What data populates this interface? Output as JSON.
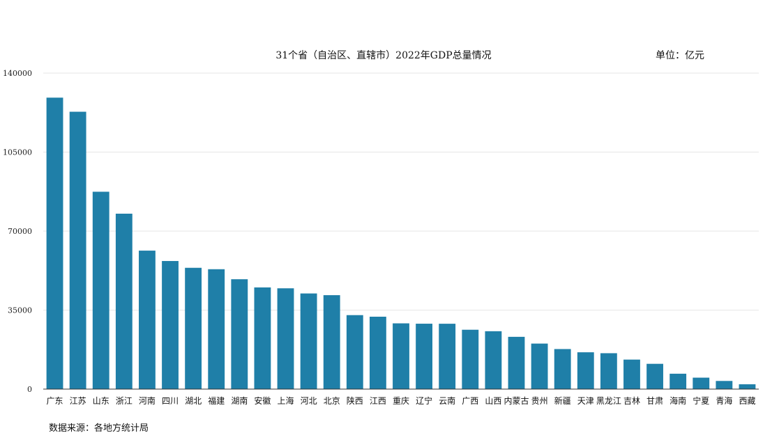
{
  "chart_data": {
    "type": "bar",
    "title": "31个省（自治区、直辖市）2022年GDP总量情况",
    "unit_label": "单位：亿元",
    "source_note": "数据来源：各地方统计局",
    "bar_color": "#1f7fa8",
    "ylim": [
      0,
      140000
    ],
    "yticks": [
      "0",
      "35000",
      "70000",
      "105000",
      "140000"
    ],
    "grid": true,
    "categories": [
      "广东",
      "江苏",
      "山东",
      "浙江",
      "河南",
      "四川",
      "湖北",
      "福建",
      "湖南",
      "安徽",
      "上海",
      "河北",
      "北京",
      "陕西",
      "江西",
      "重庆",
      "辽宁",
      "云南",
      "广西",
      "山西",
      "内蒙古",
      "贵州",
      "新疆",
      "天津",
      "黑龙江",
      "吉林",
      "甘肃",
      "海南",
      "宁夏",
      "青海",
      "西藏"
    ],
    "values": [
      129119,
      122876,
      87435,
      77715,
      61345,
      56750,
      53735,
      53110,
      48670,
      45045,
      44653,
      42370,
      41611,
      32773,
      32075,
      29129,
      28975,
      28954,
      26301,
      25643,
      23159,
      20165,
      17741,
      16311,
      15901,
      13070,
      11202,
      6818,
      5070,
      3610,
      2133
    ]
  }
}
